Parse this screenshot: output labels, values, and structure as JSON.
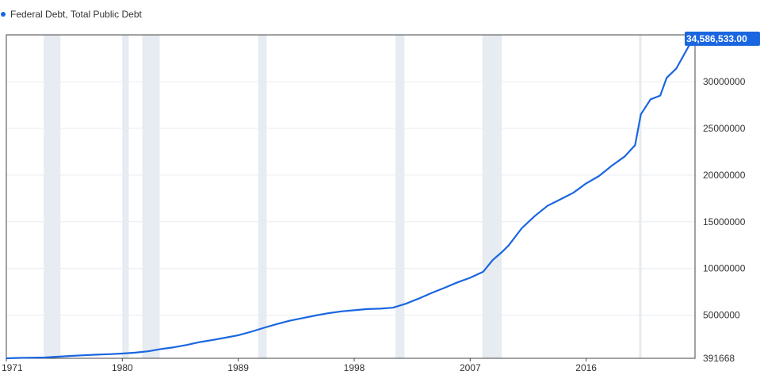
{
  "legend": {
    "label": "Federal Debt, Total Public Debt"
  },
  "colors": {
    "series": "#1a66e0",
    "recession": "#e6ecf1",
    "grid": "#e8edf0",
    "axis": "#444444",
    "last_value_bg": "#1a66e0",
    "last_value_text": "#ffffff"
  },
  "chart_data": {
    "type": "line",
    "title": "",
    "xlabel": "",
    "ylabel": "",
    "xlim": [
      1971.0,
      2024.45
    ],
    "ylim": [
      391668,
      35000000
    ],
    "grid": {
      "horizontal": true,
      "vertical": false
    },
    "legend_position": "top-left",
    "x_ticks": [
      {
        "x": 1971,
        "label": "1971"
      },
      {
        "x": 1980,
        "label": "1980"
      },
      {
        "x": 1989,
        "label": "1989"
      },
      {
        "x": 1998,
        "label": "1998"
      },
      {
        "x": 2007,
        "label": "2007"
      },
      {
        "x": 2016,
        "label": "2016"
      }
    ],
    "y_ticks": [
      {
        "y": 391668,
        "label": "391668"
      },
      {
        "y": 5000000,
        "label": "5000000"
      },
      {
        "y": 10000000,
        "label": "10000000"
      },
      {
        "y": 15000000,
        "label": "15000000"
      },
      {
        "y": 20000000,
        "label": "20000000"
      },
      {
        "y": 25000000,
        "label": "25000000"
      },
      {
        "y": 30000000,
        "label": "30000000"
      }
    ],
    "recessions": [
      [
        1973.9,
        1975.2
      ],
      [
        1980.0,
        1980.5
      ],
      [
        1981.55,
        1982.9
      ],
      [
        1990.55,
        1991.2
      ],
      [
        2001.2,
        2001.9
      ],
      [
        2007.95,
        2009.45
      ],
      [
        2020.1,
        2020.3
      ]
    ],
    "last_value": {
      "x": 2024.45,
      "y": 34586533,
      "label": "34,586,533.00"
    },
    "series": [
      {
        "name": "Federal Debt, Total Public Debt",
        "points": [
          [
            1971.0,
            391668
          ],
          [
            1972.0,
            430000
          ],
          [
            1973.0,
            460000
          ],
          [
            1974.0,
            480000
          ],
          [
            1975.0,
            560000
          ],
          [
            1976.0,
            650000
          ],
          [
            1977.0,
            710000
          ],
          [
            1978.0,
            780000
          ],
          [
            1979.0,
            830000
          ],
          [
            1980.0,
            900000
          ],
          [
            1981.0,
            990000
          ],
          [
            1982.0,
            1140000
          ],
          [
            1983.0,
            1380000
          ],
          [
            1984.0,
            1570000
          ],
          [
            1985.0,
            1820000
          ],
          [
            1986.0,
            2120000
          ],
          [
            1987.0,
            2350000
          ],
          [
            1988.0,
            2600000
          ],
          [
            1989.0,
            2860000
          ],
          [
            1990.0,
            3230000
          ],
          [
            1991.0,
            3660000
          ],
          [
            1992.0,
            4060000
          ],
          [
            1993.0,
            4410000
          ],
          [
            1994.0,
            4690000
          ],
          [
            1995.0,
            4970000
          ],
          [
            1996.0,
            5220000
          ],
          [
            1997.0,
            5410000
          ],
          [
            1998.0,
            5530000
          ],
          [
            1999.0,
            5660000
          ],
          [
            2000.0,
            5700000
          ],
          [
            2001.0,
            5800000
          ],
          [
            2002.0,
            6230000
          ],
          [
            2003.0,
            6780000
          ],
          [
            2004.0,
            7380000
          ],
          [
            2005.0,
            7930000
          ],
          [
            2006.0,
            8510000
          ],
          [
            2007.0,
            9010000
          ],
          [
            2008.0,
            9650000
          ],
          [
            2008.75,
            10900000
          ],
          [
            2009.5,
            11800000
          ],
          [
            2010.0,
            12500000
          ],
          [
            2011.0,
            14300000
          ],
          [
            2012.0,
            15600000
          ],
          [
            2013.0,
            16700000
          ],
          [
            2014.0,
            17400000
          ],
          [
            2015.0,
            18100000
          ],
          [
            2016.0,
            19100000
          ],
          [
            2017.0,
            19900000
          ],
          [
            2018.0,
            21000000
          ],
          [
            2019.0,
            22000000
          ],
          [
            2019.8,
            23200000
          ],
          [
            2020.25,
            26500000
          ],
          [
            2021.0,
            28100000
          ],
          [
            2021.75,
            28500000
          ],
          [
            2022.25,
            30400000
          ],
          [
            2023.0,
            31400000
          ],
          [
            2023.6,
            32900000
          ],
          [
            2024.0,
            33900000
          ],
          [
            2024.45,
            34586533
          ]
        ]
      }
    ]
  }
}
